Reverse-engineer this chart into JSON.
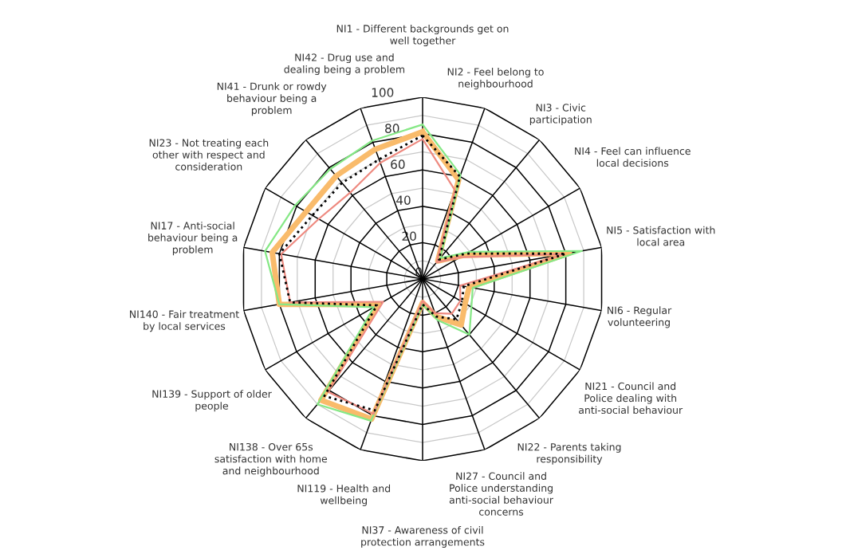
{
  "chart_data": {
    "type": "radar",
    "categories": [
      "NI1 - Different backgrounds get on well together",
      "NI2 - Feel belong to neighbourhood",
      "NI3 - Civic participation",
      "NI4 - Feel can influence local decisions",
      "NI5 - Satisfaction with local area",
      "NI6 - Regular volunteering",
      "NI21 - Council and Police dealing with anti-social behaviour",
      "NI22 - Parents taking responsibility",
      "NI27 - Council and Police understanding anti-social behaviour concerns",
      "NI37 - Awareness of civil protection arrangements",
      "NI119 - Health and wellbeing",
      "NI138 - Over 65s satisfaction with home and neighbourhood",
      "NI139 - Support of older people",
      "NI140 - Fair treatment by local services",
      "NI17 - Anti-social behaviour being a problem",
      "NI23 - Not treating each other with respect and consideration",
      "NI41 - Drunk or rowdy behaviour being a problem",
      "NI42 - Drug use and dealing being a problem"
    ],
    "series": [
      {
        "color": "#f9bb6b",
        "line_style": "solid",
        "values": [
          81,
          58,
          13,
          26,
          82,
          26,
          27,
          33,
          22,
          13,
          82,
          87,
          28,
          80,
          84,
          74,
          74,
          76
        ]
      },
      {
        "color": "#86e886",
        "line_style": "solid",
        "values": [
          85,
          61,
          15,
          30,
          89,
          28,
          31,
          40,
          24,
          14,
          83,
          90,
          31,
          80,
          88,
          81,
          79,
          81
        ]
      },
      {
        "color": "#ee8a80",
        "line_style": "solid",
        "values": [
          77,
          52,
          12,
          24,
          79,
          21,
          24,
          25,
          20,
          12,
          79,
          81,
          25,
          74,
          79,
          66,
          62,
          68
        ]
      },
      {
        "color": "#000000",
        "line_style": "dotted",
        "values": [
          79,
          60,
          14,
          28,
          80,
          23,
          25,
          29,
          22,
          14,
          77,
          84,
          29,
          74,
          80,
          70,
          69,
          70
        ]
      }
    ],
    "ylim": [
      0,
      100
    ],
    "yticks": [
      0,
      20,
      40,
      60,
      80,
      100
    ],
    "grid": true,
    "marker": "none"
  }
}
